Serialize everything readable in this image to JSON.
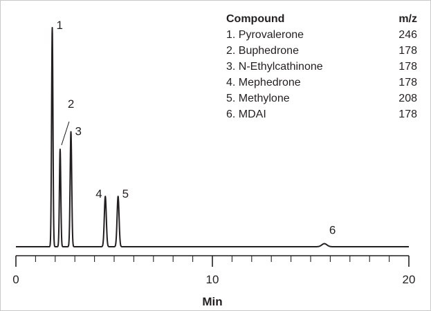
{
  "chart_data": {
    "type": "line",
    "xlabel": "Min",
    "ylabel": "",
    "xlim": [
      0,
      20
    ],
    "x_ticks_major": [
      0,
      10,
      20
    ],
    "x_tick_labels": [
      "0",
      "10",
      "20"
    ],
    "x_ticks_minor_step": 1,
    "grid": false,
    "legend_position": "top-right",
    "table": {
      "header": {
        "compound": "Compound",
        "mz": "m/z"
      },
      "rows": [
        {
          "compound": "1. Pyrovalerone",
          "mz": "246"
        },
        {
          "compound": "2. Buphedrone",
          "mz": "178"
        },
        {
          "compound": "3. N-Ethylcathinone",
          "mz": "178"
        },
        {
          "compound": "4. Mephedrone",
          "mz": "178"
        },
        {
          "compound": "5. Methylone",
          "mz": "208"
        },
        {
          "compound": "6. MDAI",
          "mz": "178"
        }
      ]
    },
    "peaks": [
      {
        "label": "1",
        "rt": 1.85,
        "height": 1.0,
        "width": 0.035
      },
      {
        "label": "2",
        "rt": 2.25,
        "height": 0.445,
        "width": 0.035
      },
      {
        "label": "3",
        "rt": 2.8,
        "height": 0.525,
        "width": 0.04
      },
      {
        "label": "4",
        "rt": 4.55,
        "height": 0.23,
        "width": 0.05
      },
      {
        "label": "5",
        "rt": 5.2,
        "height": 0.23,
        "width": 0.05
      },
      {
        "label": "6",
        "rt": 15.7,
        "height": 0.014,
        "width": 0.13
      }
    ],
    "line_color": "#231f20"
  }
}
